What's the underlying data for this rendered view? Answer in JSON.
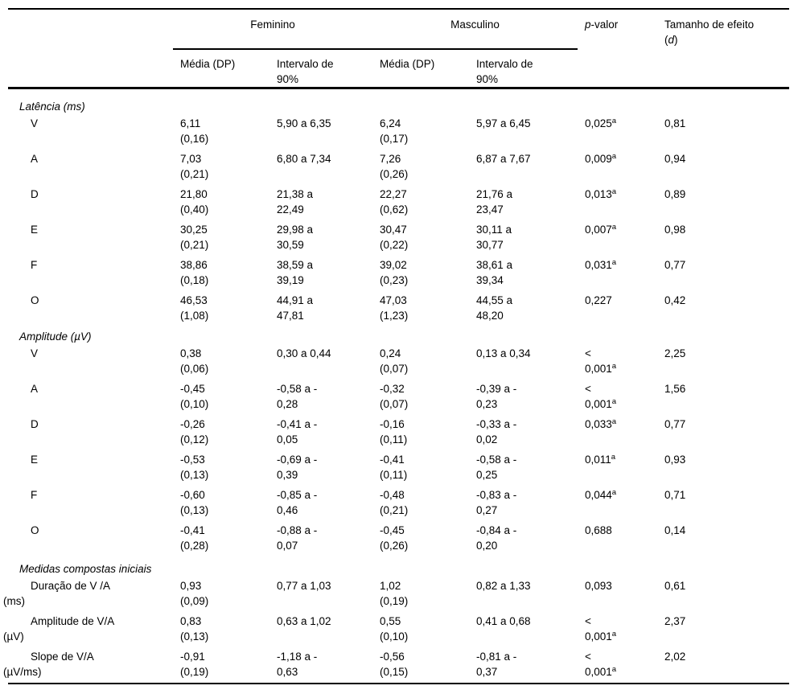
{
  "header": {
    "feminino": "Feminino",
    "masculino": "Masculino",
    "p_italic": "p",
    "p_rest": "-valor",
    "efeito_line1": "Tamanho de efeito",
    "efeito_open": "(",
    "efeito_d": "d",
    "efeito_close": ")",
    "media_dp_fem": "Média (DP)",
    "intervalo_fem": "Intervalo de\n90%",
    "media_dp_masc": "Média (DP)",
    "intervalo_masc": "Intervalo de\n90%"
  },
  "sections": [
    {
      "title": "Latência (ms)",
      "rows": [
        {
          "label": "V",
          "fem_media": "6,11",
          "fem_dp": "(0,16)",
          "fem_int": "5,90 a 6,35",
          "masc_media": "6,24",
          "masc_dp": "(0,17)",
          "masc_int": "5,97 a 6,45",
          "p": "0,025",
          "p_sup": "a",
          "d": "0,81"
        },
        {
          "label": "A",
          "fem_media": "7,03",
          "fem_dp": "(0,21)",
          "fem_int": "6,80 a 7,34",
          "masc_media": "7,26",
          "masc_dp": "(0,26)",
          "masc_int": "6,87 a 7,67",
          "p": "0,009",
          "p_sup": "a",
          "d": "0,94"
        },
        {
          "label": "D",
          "fem_media": "21,80",
          "fem_dp": "(0,40)",
          "fem_int": "21,38 a\n22,49",
          "masc_media": "22,27",
          "masc_dp": "(0,62)",
          "masc_int": "21,76 a\n23,47",
          "p": "0,013",
          "p_sup": "a",
          "d": "0,89"
        },
        {
          "label": "E",
          "fem_media": "30,25",
          "fem_dp": "(0,21)",
          "fem_int": "29,98 a\n30,59",
          "masc_media": "30,47",
          "masc_dp": "(0,22)",
          "masc_int": "30,11 a\n30,77",
          "p": "0,007",
          "p_sup": "a",
          "d": "0,98"
        },
        {
          "label": "F",
          "fem_media": "38,86",
          "fem_dp": "(0,18)",
          "fem_int": "38,59 a\n39,19",
          "masc_media": "39,02",
          "masc_dp": "(0,23)",
          "masc_int": "38,61 a\n39,34",
          "p": "0,031",
          "p_sup": "a",
          "d": "0,77"
        },
        {
          "label": "O",
          "fem_media": "46,53",
          "fem_dp": "(1,08)",
          "fem_int": "44,91 a\n47,81",
          "masc_media": "47,03",
          "masc_dp": "(1,23)",
          "masc_int": "44,55 a\n48,20",
          "p": "0,227",
          "d": "0,42"
        }
      ]
    },
    {
      "title": "Amplitude (µV)",
      "rows": [
        {
          "label": "V",
          "fem_media": "0,38",
          "fem_dp": "(0,06)",
          "fem_int": "0,30 a 0,44",
          "masc_media": "0,24",
          "masc_dp": "(0,07)",
          "masc_int": "0,13 a 0,34",
          "p": "<\n0,001",
          "p_sup": "a",
          "d": "2,25"
        },
        {
          "label": "A",
          "fem_media": "-0,45",
          "fem_dp": "(0,10)",
          "fem_int": "-0,58 a -\n0,28",
          "masc_media": "-0,32",
          "masc_dp": "(0,07)",
          "masc_int": "-0,39 a -\n0,23",
          "p": "<\n0,001",
          "p_sup": "a",
          "d": "1,56"
        },
        {
          "label": "D",
          "fem_media": "-0,26",
          "fem_dp": "(0,12)",
          "fem_int": "-0,41 a -\n0,05",
          "masc_media": "-0,16",
          "masc_dp": "(0,11)",
          "masc_int": "-0,33 a -\n0,02",
          "p": "0,033",
          "p_sup": "a",
          "d": "0,77"
        },
        {
          "label": "E",
          "fem_media": "-0,53",
          "fem_dp": "(0,13)",
          "fem_int": "-0,69 a -\n0,39",
          "masc_media": "-0,41",
          "masc_dp": "(0,11)",
          "masc_int": "-0,58 a -\n0,25",
          "p": "0,011",
          "p_sup": "a",
          "d": "0,93"
        },
        {
          "label": "F",
          "fem_media": "-0,60",
          "fem_dp": "(0,13)",
          "fem_int": "-0,85 a -\n0,46",
          "masc_media": "-0,48",
          "masc_dp": "(0,21)",
          "masc_int": "-0,83 a -\n0,27",
          "p": "0,044",
          "p_sup": "a",
          "d": "0,71"
        },
        {
          "label": "O",
          "fem_media": "-0,41",
          "fem_dp": "(0,28)",
          "fem_int": "-0,88 a -\n0,07",
          "masc_media": "-0,45",
          "masc_dp": "(0,26)",
          "masc_int": "-0,84 a -\n0,20",
          "p": "0,688",
          "d": "0,14"
        }
      ]
    },
    {
      "title": "Medidas compostas iniciais",
      "rows": [
        {
          "label": "Duração de V /A",
          "label2": "(ms)",
          "fem_media": "0,93",
          "fem_dp": "(0,09)",
          "fem_int": "0,77 a 1,03",
          "masc_media": "1,02",
          "masc_dp": "(0,19)",
          "masc_int": "0,82 a 1,33",
          "p": "0,093",
          "d": "0,61"
        },
        {
          "label": "Amplitude de V/A",
          "label2": "(µV)",
          "fem_media": "0,83",
          "fem_dp": "(0,13)",
          "fem_int": "0,63 a 1,02",
          "masc_media": "0,55",
          "masc_dp": "(0,10)",
          "masc_int": "0,41 a 0,68",
          "p": "<\n0,001",
          "p_sup": "a",
          "d": "2,37"
        },
        {
          "label": "Slope de V/A",
          "label2": "(µV/ms)",
          "fem_media": "-0,91",
          "fem_dp": "(0,19)",
          "fem_int": "-1,18 a -\n0,63",
          "masc_media": "-0,56",
          "masc_dp": "(0,15)",
          "masc_int": "-0,81 a -\n0,37",
          "p": "<\n0,001",
          "p_sup": "a",
          "d": "2,02"
        }
      ]
    }
  ]
}
